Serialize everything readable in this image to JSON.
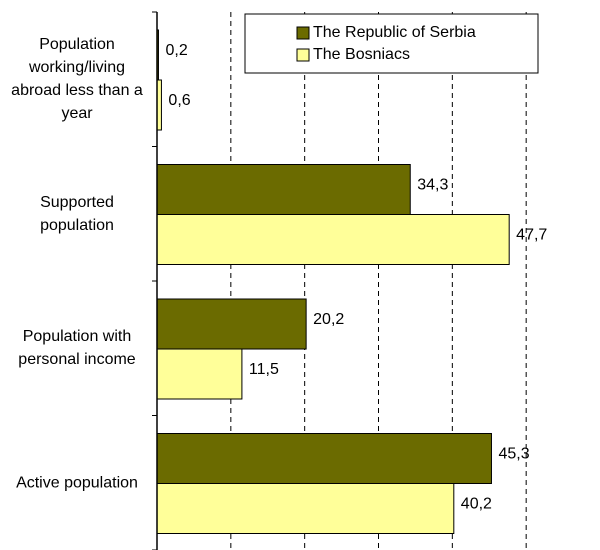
{
  "chart_data": {
    "type": "bar",
    "orientation": "horizontal",
    "categories": [
      "Population working/living abroad less than a year",
      "Supported population",
      "Population with personal income",
      "Active population"
    ],
    "series": [
      {
        "name": "The Republic of Serbia",
        "color": "#6b6b00",
        "values": [
          0.2,
          34.3,
          20.2,
          45.3
        ],
        "value_labels": [
          "0,2",
          "34,3",
          "20,2",
          "45,3"
        ]
      },
      {
        "name": "The Bosniacs",
        "color": "#ffff99",
        "values": [
          0.6,
          47.7,
          11.5,
          40.2
        ],
        "value_labels": [
          "0,6",
          "47,7",
          "11,5",
          "40,2"
        ]
      }
    ],
    "xlim": [
      0,
      60
    ],
    "xticks": [
      10,
      20,
      30,
      40,
      50
    ],
    "grid": true,
    "legend": "top"
  }
}
